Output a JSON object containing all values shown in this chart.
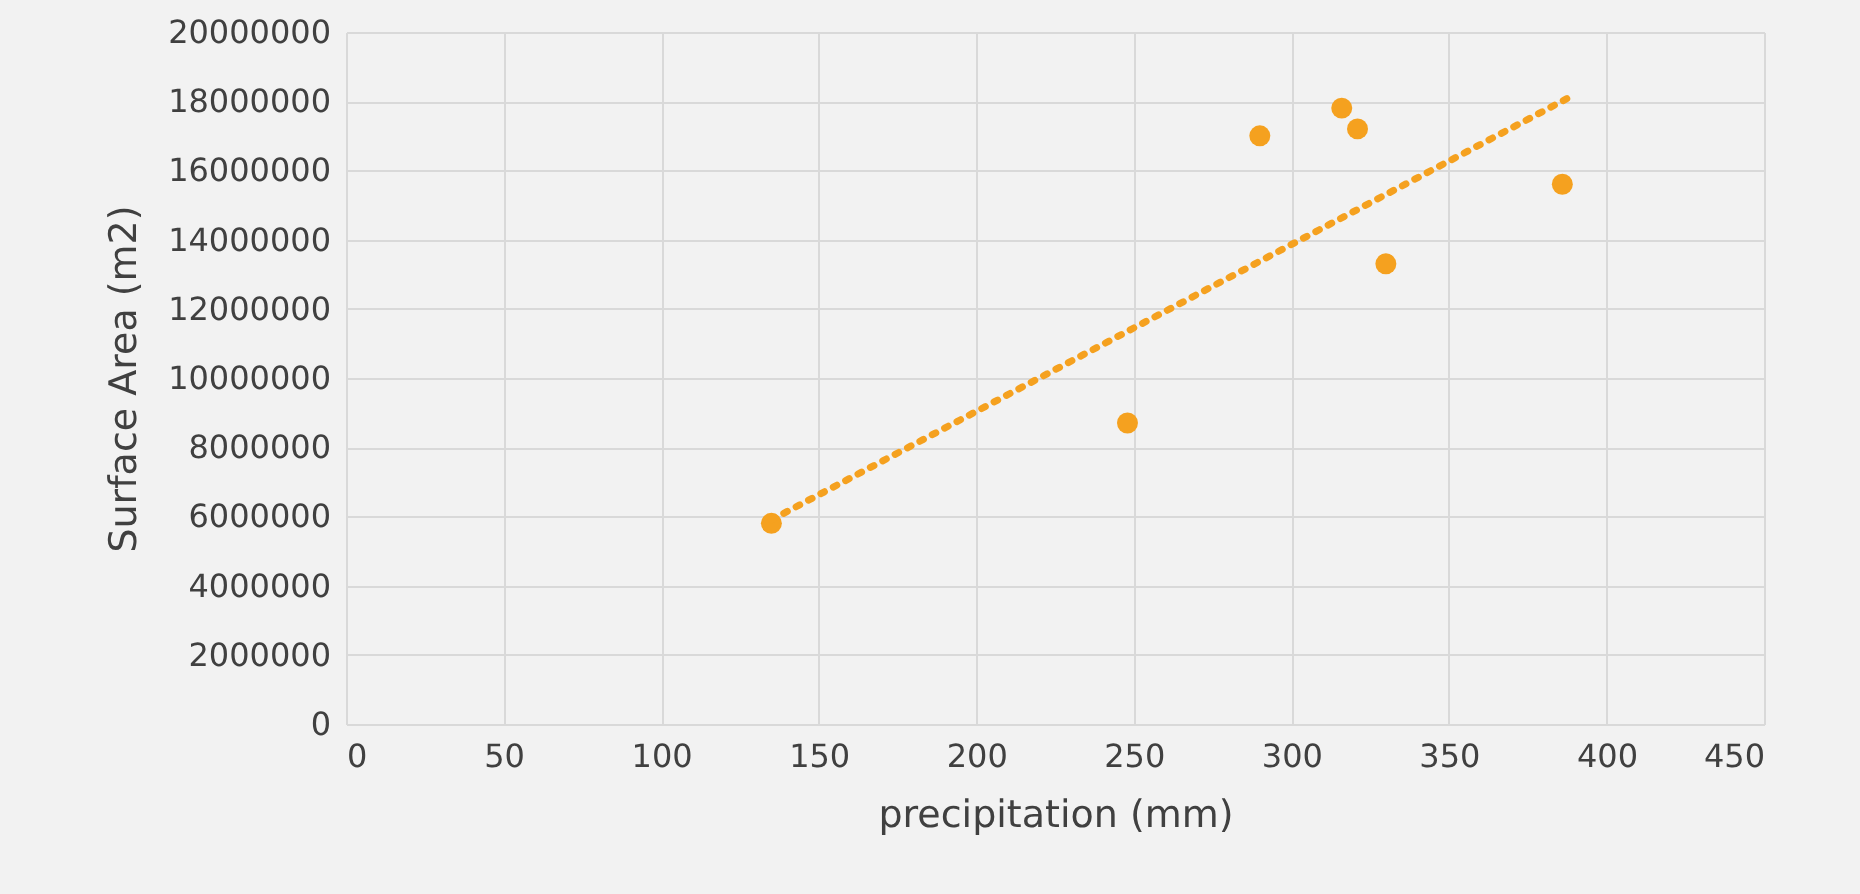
{
  "chart_data": {
    "type": "scatter",
    "xlabel": "precipitation (mm)",
    "ylabel": "Surface Area (m2)",
    "xlim": [
      0,
      450
    ],
    "xticks": [
      0,
      50,
      100,
      150,
      200,
      250,
      300,
      350,
      400,
      450
    ],
    "ylim": [
      0,
      20000000
    ],
    "yticks": [
      0,
      2000000,
      4000000,
      6000000,
      8000000,
      10000000,
      12000000,
      14000000,
      16000000,
      18000000,
      20000000
    ],
    "grid": true,
    "series": [
      {
        "color": "#f5a11f",
        "marker": "circle",
        "x": [
          135,
          248,
          290,
          316,
          321,
          330,
          386
        ],
        "values": [
          5800000,
          8700000,
          17000000,
          17800000,
          17200000,
          13300000,
          15600000
        ]
      },
      {
        "type": "line",
        "color": "#f5a11f",
        "line_style": "dotted",
        "marker": "none",
        "x": [
          135,
          388
        ],
        "values": [
          5900000,
          18100000
        ]
      }
    ]
  }
}
